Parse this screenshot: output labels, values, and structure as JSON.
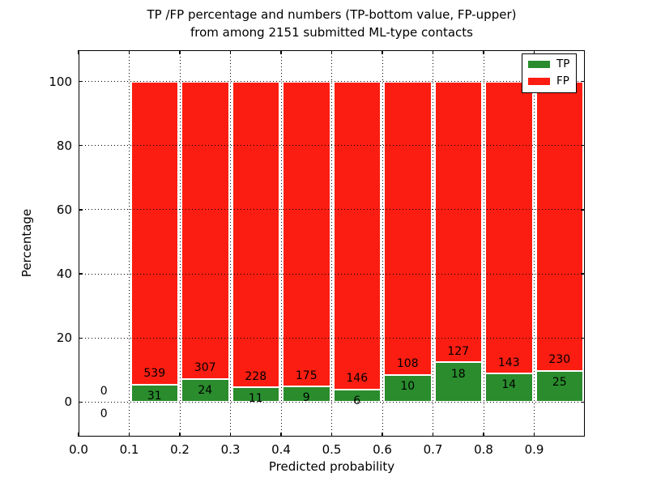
{
  "title": {
    "line1": "TP /FP percentage and numbers (TP-bottom value, FP-upper)",
    "line2": "from among 2151 submitted ML-type contacts"
  },
  "chart_data": {
    "type": "bar",
    "stacked": true,
    "normalized": "percent-of-bin-total",
    "title": "TP /FP percentage and numbers (TP-bottom value, FP-upper)\nfrom among 2151 submitted ML-type contacts",
    "title_lines": [
      "TP /FP percentage and numbers (TP-bottom value, FP-upper)",
      "from among 2151 submitted ML-type contacts"
    ],
    "xlabel": "Predicted probability",
    "ylabel": "Percentage",
    "xlim": [
      0.0,
      1.0
    ],
    "ylim": [
      -10.75,
      109.75
    ],
    "xticks": [
      "0.0",
      "0.1",
      "0.2",
      "0.3",
      "0.4",
      "0.5",
      "0.6",
      "0.7",
      "0.8",
      "0.9"
    ],
    "xtick_values": [
      0.0,
      0.1,
      0.2,
      0.3,
      0.4,
      0.5,
      0.6,
      0.7,
      0.8,
      0.9
    ],
    "yticks": [
      0,
      20,
      40,
      60,
      80,
      100
    ],
    "grid": true,
    "grid_style": "dotted",
    "bin_width": 0.1,
    "bin_starts": [
      0.0,
      0.1,
      0.2,
      0.3,
      0.4,
      0.5,
      0.6,
      0.7,
      0.8,
      0.9
    ],
    "series": [
      {
        "name": "TP",
        "color": "#2a8c2d",
        "counts": [
          0,
          31,
          24,
          11,
          9,
          6,
          10,
          18,
          14,
          25
        ]
      },
      {
        "name": "FP",
        "color": "#fb1d11",
        "counts": [
          0,
          539,
          307,
          228,
          175,
          146,
          108,
          127,
          143,
          230
        ]
      }
    ],
    "total_contacts": 2151,
    "legend": {
      "position": "upper right",
      "entries": [
        {
          "label": "TP",
          "color": "#2a8c2d"
        },
        {
          "label": "FP",
          "color": "#fb1d11"
        }
      ]
    },
    "colors": {
      "tp": "#2a8c2d",
      "fp": "#fb1d11",
      "axis": "#000000",
      "background": "#ffffff"
    }
  }
}
